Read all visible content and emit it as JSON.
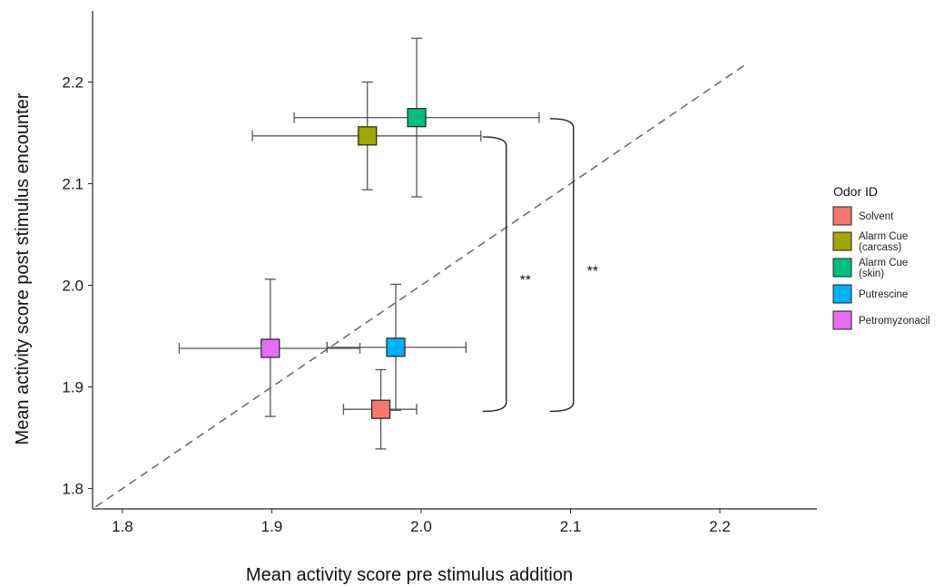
{
  "chart_data": {
    "type": "scatter",
    "title": "",
    "xlabel": "Mean activity score pre stimulus addition",
    "ylabel": "Mean activity score post stimulus encounter",
    "xlim": [
      1.78,
      2.265
    ],
    "ylim": [
      1.78,
      2.27
    ],
    "x_ticks": [
      "1.8",
      "1.9",
      "2.0",
      "2.1",
      "2.2"
    ],
    "y_ticks": [
      "1.8",
      "1.9",
      "2.0",
      "2.1",
      "2.2"
    ],
    "grid": false,
    "reference_line": {
      "style": "dashed",
      "slope": 1,
      "intercept": 0,
      "color": "#6e6e6e"
    },
    "legend": {
      "title": "Odor ID",
      "position": "right"
    },
    "series": [
      {
        "name": "Solvent",
        "color": "#F8766D",
        "x": 1.973,
        "y": 1.878,
        "x_err": [
          1.948,
          1.997
        ],
        "y_err": [
          1.839,
          1.917
        ]
      },
      {
        "name": "Alarm Cue\n(carcass)",
        "color": "#A3A500",
        "x": 1.964,
        "y": 2.147,
        "x_err": [
          1.887,
          2.04
        ],
        "y_err": [
          2.094,
          2.2
        ]
      },
      {
        "name": "Alarm Cue\n(skin)",
        "color": "#00BF7D",
        "x": 1.997,
        "y": 2.165,
        "x_err": [
          1.915,
          2.079
        ],
        "y_err": [
          2.087,
          2.243
        ]
      },
      {
        "name": "Putrescine",
        "color": "#00B0F6",
        "x": 1.983,
        "y": 1.939,
        "x_err": [
          1.937,
          2.03
        ],
        "y_err": [
          1.877,
          2.001
        ]
      },
      {
        "name": "Petromyzonacil",
        "color": "#E76BF3",
        "x": 1.899,
        "y": 1.938,
        "x_err": [
          1.838,
          1.959
        ],
        "y_err": [
          1.871,
          2.006
        ]
      }
    ],
    "annotations": [
      {
        "text": "**",
        "group": "inner",
        "y_range": [
          1.876,
          2.146
        ]
      },
      {
        "text": "**",
        "group": "outer",
        "y_range": [
          1.876,
          2.164
        ]
      }
    ]
  }
}
